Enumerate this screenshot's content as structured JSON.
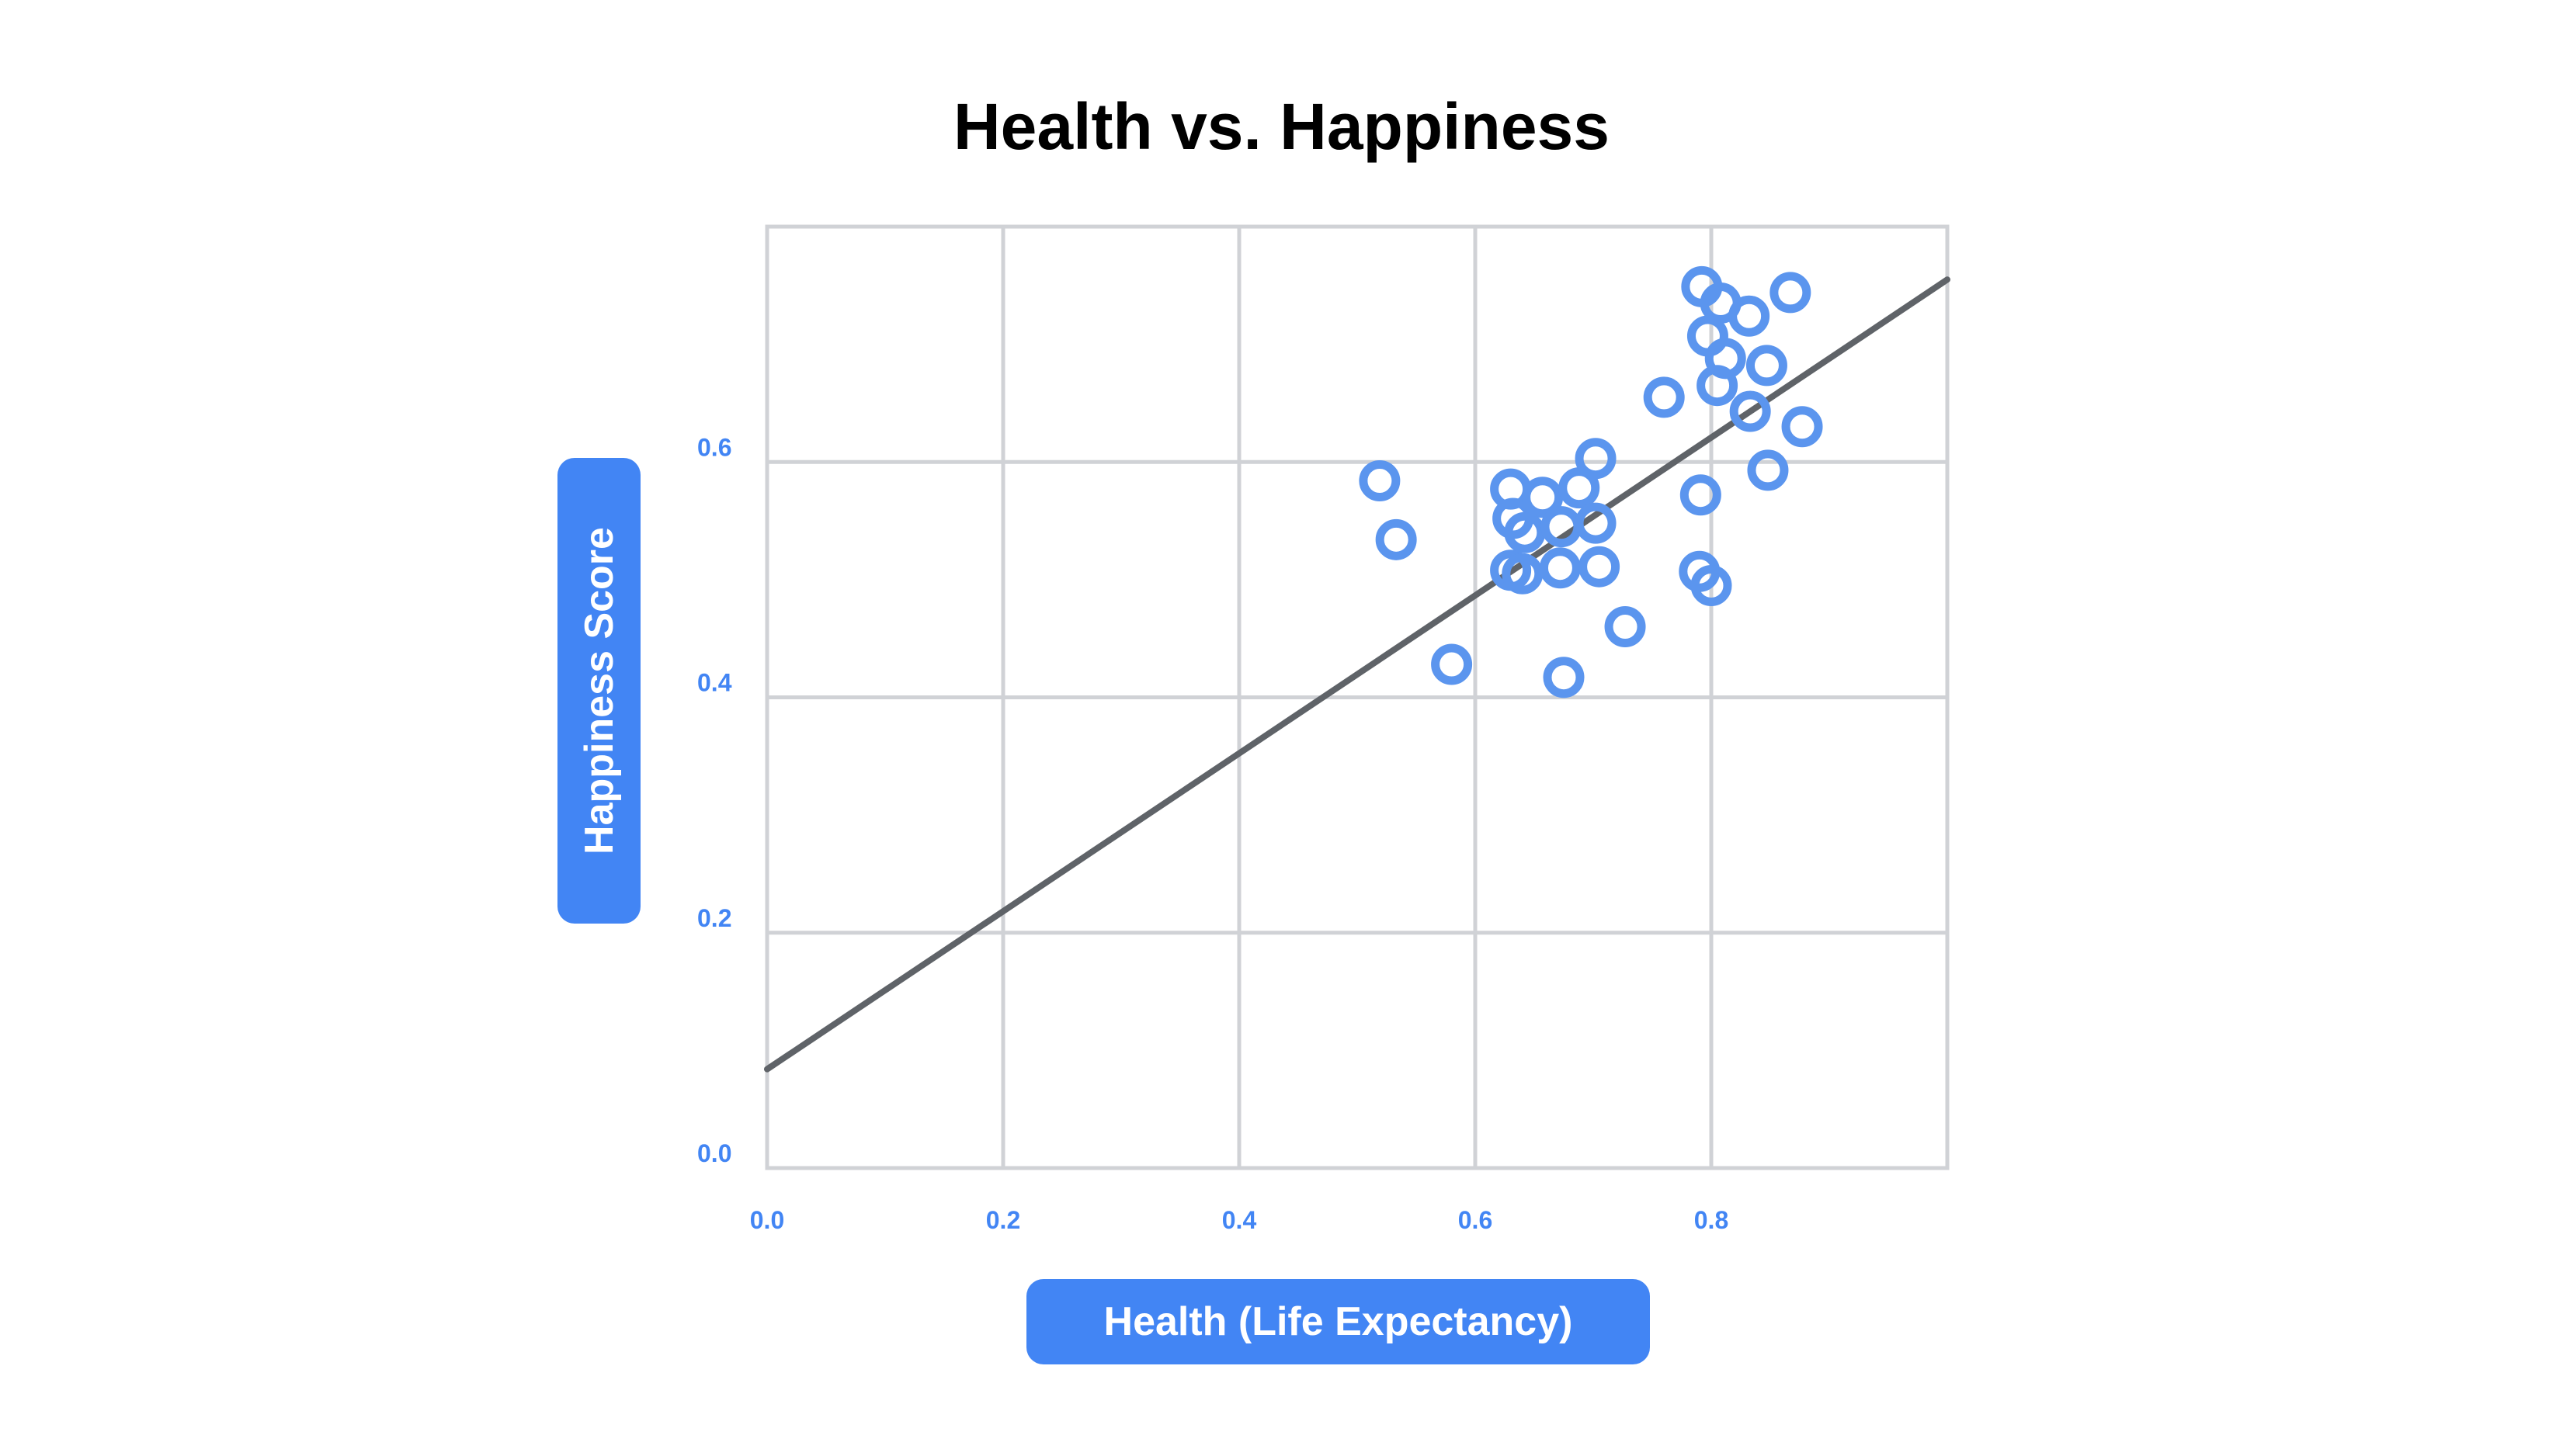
{
  "chart_data": {
    "type": "scatter",
    "title": "Health vs. Happiness",
    "xlabel": "Health (Life Expectancy)",
    "ylabel": "Happiness Score",
    "xlim": [
      0,
      1.0
    ],
    "ylim": [
      0,
      0.8
    ],
    "xticks": [
      0.0,
      0.2,
      0.4,
      0.6,
      0.8
    ],
    "yticks": [
      0.0,
      0.2,
      0.4,
      0.6
    ],
    "xtick_labels": [
      "0.0",
      "0.2",
      "0.4",
      "0.6",
      "0.8"
    ],
    "ytick_labels": [
      "0.0",
      "0.2",
      "0.4",
      "0.6"
    ],
    "grid": true,
    "legend": "none",
    "colors": {
      "points": "#5b95ee",
      "trend": "#5f6368",
      "grid": "#d0d2d6",
      "ticks": "#4285f4",
      "label_bg": "#4285f4"
    },
    "trendline": {
      "x": [
        0.0,
        1.0
      ],
      "y": [
        0.084,
        0.755
      ]
    },
    "points": [
      {
        "x": 0.519,
        "y": 0.584
      },
      {
        "x": 0.533,
        "y": 0.534
      },
      {
        "x": 0.58,
        "y": 0.428
      },
      {
        "x": 0.63,
        "y": 0.577
      },
      {
        "x": 0.632,
        "y": 0.552
      },
      {
        "x": 0.63,
        "y": 0.508
      },
      {
        "x": 0.64,
        "y": 0.505
      },
      {
        "x": 0.642,
        "y": 0.54
      },
      {
        "x": 0.657,
        "y": 0.57
      },
      {
        "x": 0.673,
        "y": 0.545
      },
      {
        "x": 0.672,
        "y": 0.51
      },
      {
        "x": 0.688,
        "y": 0.578
      },
      {
        "x": 0.702,
        "y": 0.603
      },
      {
        "x": 0.702,
        "y": 0.548
      },
      {
        "x": 0.705,
        "y": 0.511
      },
      {
        "x": 0.675,
        "y": 0.417
      },
      {
        "x": 0.727,
        "y": 0.46
      },
      {
        "x": 0.76,
        "y": 0.655
      },
      {
        "x": 0.792,
        "y": 0.749
      },
      {
        "x": 0.808,
        "y": 0.735
      },
      {
        "x": 0.832,
        "y": 0.724
      },
      {
        "x": 0.867,
        "y": 0.744
      },
      {
        "x": 0.797,
        "y": 0.707
      },
      {
        "x": 0.812,
        "y": 0.688
      },
      {
        "x": 0.847,
        "y": 0.682
      },
      {
        "x": 0.805,
        "y": 0.665
      },
      {
        "x": 0.833,
        "y": 0.643
      },
      {
        "x": 0.877,
        "y": 0.63
      },
      {
        "x": 0.848,
        "y": 0.593
      },
      {
        "x": 0.791,
        "y": 0.572
      },
      {
        "x": 0.79,
        "y": 0.507
      },
      {
        "x": 0.8,
        "y": 0.495
      }
    ]
  }
}
